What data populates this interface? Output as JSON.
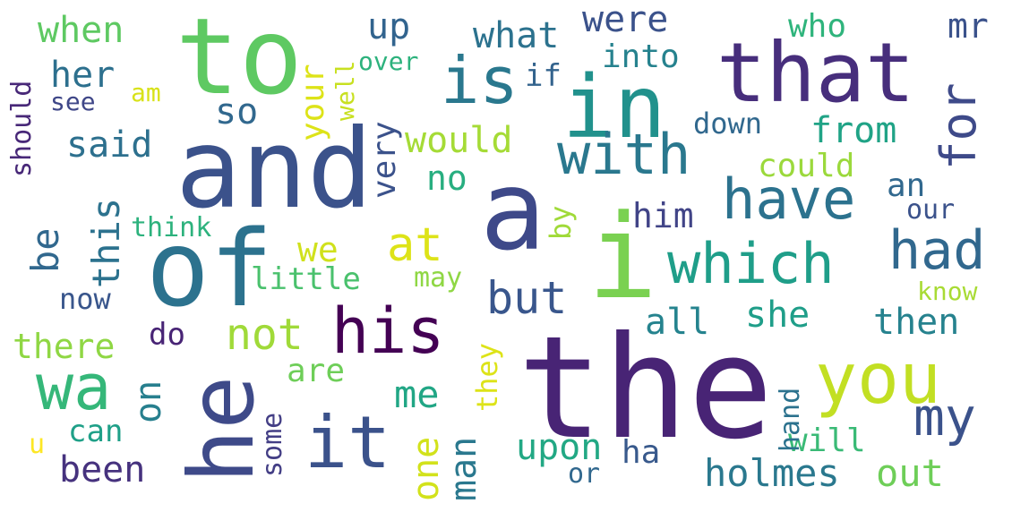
{
  "words": [
    {
      "text": "the",
      "color": "#482475"
    },
    {
      "text": "and",
      "color": "#3b528b"
    },
    {
      "text": "to",
      "color": "#5ec962"
    },
    {
      "text": "that",
      "color": "#472e7c"
    },
    {
      "text": "in",
      "color": "#21918c"
    },
    {
      "text": "a",
      "color": "#3e4989"
    },
    {
      "text": "i",
      "color": "#7ad151"
    },
    {
      "text": "of",
      "color": "#2c728e"
    },
    {
      "text": "is",
      "color": "#2a788e"
    },
    {
      "text": "his",
      "color": "#440154"
    },
    {
      "text": "you",
      "color": "#c2df23"
    },
    {
      "text": "it",
      "color": "#3b528b"
    },
    {
      "text": "he",
      "color": "#3e4a89"
    },
    {
      "text": "wa",
      "color": "#35b779"
    },
    {
      "text": "with",
      "color": "#2a788e"
    },
    {
      "text": "have",
      "color": "#2c728e"
    },
    {
      "text": "which",
      "color": "#1f9e89"
    },
    {
      "text": "had",
      "color": "#31688e"
    },
    {
      "text": "for",
      "color": "#3e4a89"
    },
    {
      "text": "my",
      "color": "#3b528b"
    },
    {
      "text": "not",
      "color": "#a0da39"
    },
    {
      "text": "at",
      "color": "#dde318"
    },
    {
      "text": "but",
      "color": "#39568c"
    },
    {
      "text": "be",
      "color": "#31688e"
    },
    {
      "text": "this",
      "color": "#2c728e"
    },
    {
      "text": "we",
      "color": "#d0e11c"
    },
    {
      "text": "on",
      "color": "#277f8e"
    },
    {
      "text": "me",
      "color": "#21a685"
    },
    {
      "text": "she",
      "color": "#1f9e89"
    },
    {
      "text": "all",
      "color": "#25838e"
    },
    {
      "text": "then",
      "color": "#26828e"
    },
    {
      "text": "from",
      "color": "#20a386"
    },
    {
      "text": "would",
      "color": "#a5db36"
    },
    {
      "text": "said",
      "color": "#2d708e"
    },
    {
      "text": "very",
      "color": "#3b528b"
    },
    {
      "text": "no",
      "color": "#28ae80"
    },
    {
      "text": "could",
      "color": "#9bd93c"
    },
    {
      "text": "him",
      "color": "#414487"
    },
    {
      "text": "your",
      "color": "#dde318"
    },
    {
      "text": "her",
      "color": "#2d708e"
    },
    {
      "text": "when",
      "color": "#5ec962"
    },
    {
      "text": "up",
      "color": "#32648e"
    },
    {
      "text": "were",
      "color": "#3b528b"
    },
    {
      "text": "what",
      "color": "#2c728e"
    },
    {
      "text": "so",
      "color": "#31688e"
    },
    {
      "text": "into",
      "color": "#26828e"
    },
    {
      "text": "who",
      "color": "#2fb47c"
    },
    {
      "text": "mr",
      "color": "#3b528b"
    },
    {
      "text": "if",
      "color": "#33638d"
    },
    {
      "text": "over",
      "color": "#2db27d"
    },
    {
      "text": "well",
      "color": "#c8e020"
    },
    {
      "text": "am",
      "color": "#d8e219"
    },
    {
      "text": "see",
      "color": "#3f4788"
    },
    {
      "text": "should",
      "color": "#482878"
    },
    {
      "text": "down",
      "color": "#31688e"
    },
    {
      "text": "an",
      "color": "#31688e"
    },
    {
      "text": "our",
      "color": "#3b528b"
    },
    {
      "text": "by",
      "color": "#a0da39"
    },
    {
      "text": "think",
      "color": "#2db27d"
    },
    {
      "text": "little",
      "color": "#4ac16d"
    },
    {
      "text": "may",
      "color": "#8fd744"
    },
    {
      "text": "now",
      "color": "#39568c"
    },
    {
      "text": "know",
      "color": "#a8db34"
    },
    {
      "text": "there",
      "color": "#8fd744"
    },
    {
      "text": "do",
      "color": "#482475"
    },
    {
      "text": "are",
      "color": "#6ece58"
    },
    {
      "text": "they",
      "color": "#dde318"
    },
    {
      "text": "one",
      "color": "#d2e21b"
    },
    {
      "text": "man",
      "color": "#2a788e"
    },
    {
      "text": "upon",
      "color": "#22a884"
    },
    {
      "text": "ha",
      "color": "#38598c"
    },
    {
      "text": "hand",
      "color": "#2c728e"
    },
    {
      "text": "will",
      "color": "#3aba76"
    },
    {
      "text": "can",
      "color": "#1fa088"
    },
    {
      "text": "u",
      "color": "#fde725"
    },
    {
      "text": "some",
      "color": "#433e85"
    },
    {
      "text": "been",
      "color": "#46327e"
    },
    {
      "text": "or",
      "color": "#31688e"
    },
    {
      "text": "holmes",
      "color": "#2a788e"
    },
    {
      "text": "out",
      "color": "#6ece58"
    }
  ]
}
